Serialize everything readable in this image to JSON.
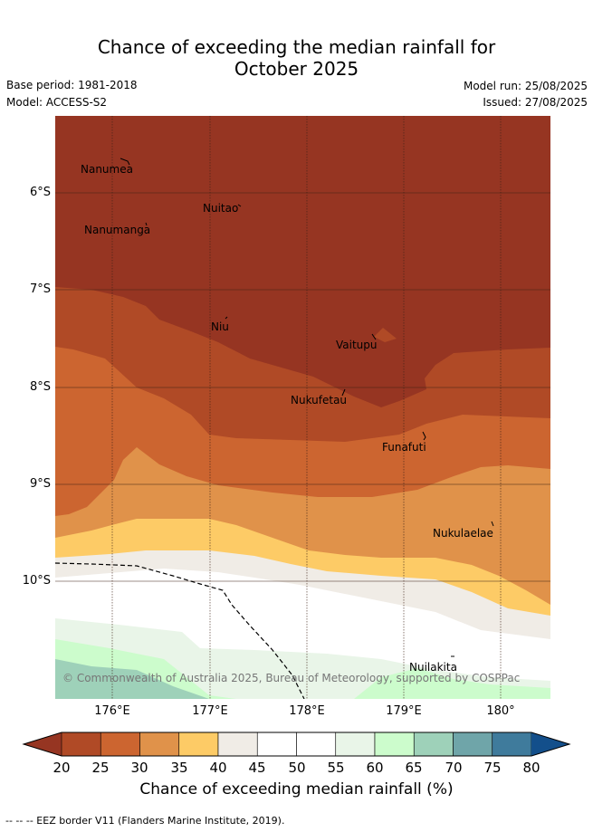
{
  "title_line1": "Chance of exceeding the median rainfall for",
  "title_line2": "October 2025",
  "base_period": "Base period: 1981-2018",
  "model": "Model: ACCESS-S2",
  "model_run": "Model run: 25/08/2025",
  "issued": "Issued: 27/08/2025",
  "copyright": "© Commonwealth of Australia 2025, Bureau of Meteorology, supported by COSPPac",
  "lat_labels": [
    "6°S",
    "7°S",
    "8°S",
    "9°S",
    "10°S"
  ],
  "lon_labels": [
    "176°E",
    "177°E",
    "178°E",
    "179°E",
    "180°"
  ],
  "islands": [
    {
      "name": "Nanumea"
    },
    {
      "name": "Nuitao"
    },
    {
      "name": "Nanumanga"
    },
    {
      "name": "Niu"
    },
    {
      "name": "Vaitupu"
    },
    {
      "name": "Nukufetau"
    },
    {
      "name": "Funafuti"
    },
    {
      "name": "Nukulaelae"
    },
    {
      "name": "Nuilakita"
    }
  ],
  "colorbar": {
    "title": "Chance of exceeding median rainfall (%)",
    "ticks": [
      "20",
      "25",
      "30",
      "35",
      "40",
      "45",
      "50",
      "55",
      "60",
      "65",
      "70",
      "75",
      "80"
    ],
    "colors": [
      "#b04a26",
      "#cc6530",
      "#e0924a",
      "#fdcb66",
      "#f0ece6",
      "#ffffff",
      "#ffffff",
      "#e9f5e8",
      "#ccfccc",
      "#9ed1b9",
      "#6fa5a9",
      "#3f7b9c"
    ],
    "under_color": "#963522",
    "over_color": "#134f8b"
  },
  "footnote": "-- -- -- EEZ border V11 (Flanders Marine Institute, 2019)."
}
